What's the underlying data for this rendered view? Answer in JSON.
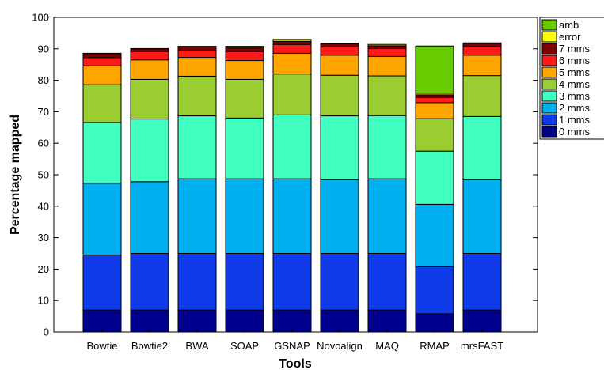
{
  "chart_data": {
    "type": "bar",
    "stacked": true,
    "title": "",
    "xlabel": "Tools",
    "ylabel": "Percentage mapped",
    "ylim": [
      0,
      100
    ],
    "yticks": [
      0,
      10,
      20,
      30,
      40,
      50,
      60,
      70,
      80,
      90,
      100
    ],
    "grid": false,
    "legend_position": "top-right",
    "categories": [
      "Bowtie",
      "Bowtie2",
      "BWA",
      "SOAP",
      "GSNAP",
      "Novoalign",
      "MAQ",
      "RMAP",
      "mrsFAST"
    ],
    "legend_order": [
      "amb",
      "error",
      "7 mms",
      "6 mms",
      "5 mms",
      "4 mms",
      "3 mms",
      "2 mms",
      "1 mms",
      "0 mms"
    ],
    "series": [
      {
        "name": "0 mms",
        "color": "#00008F",
        "values": [
          7.0,
          7.0,
          7.0,
          7.0,
          7.0,
          7.0,
          7.0,
          5.8,
          7.0
        ]
      },
      {
        "name": "1 mms",
        "color": "#0F3BE8",
        "values": [
          17.5,
          18.0,
          18.0,
          18.0,
          18.0,
          18.0,
          18.0,
          15.0,
          18.0
        ]
      },
      {
        "name": "2 mms",
        "color": "#00B0F0",
        "values": [
          22.8,
          22.8,
          23.7,
          23.7,
          23.7,
          23.4,
          23.7,
          19.8,
          23.4
        ]
      },
      {
        "name": "3 mms",
        "color": "#40FFC0",
        "values": [
          19.3,
          19.9,
          20.0,
          19.3,
          20.3,
          20.3,
          20.1,
          16.9,
          20.1
        ]
      },
      {
        "name": "4 mms",
        "color": "#9ACD32",
        "values": [
          12.0,
          12.6,
          12.6,
          12.3,
          13.0,
          12.9,
          12.6,
          10.3,
          13.0
        ]
      },
      {
        "name": "5 mms",
        "color": "#FFA500",
        "values": [
          6.0,
          6.2,
          6.0,
          6.0,
          6.6,
          6.4,
          6.2,
          5.1,
          6.5
        ]
      },
      {
        "name": "6 mms",
        "color": "#FF1A1A",
        "values": [
          2.6,
          2.6,
          2.3,
          2.8,
          2.8,
          2.6,
          2.5,
          1.7,
          2.7
        ]
      },
      {
        "name": "7 mms",
        "color": "#800000",
        "values": [
          1.3,
          0.9,
          1.1,
          1.2,
          1.0,
          1.0,
          0.9,
          0.8,
          1.0
        ]
      },
      {
        "name": "error",
        "color": "#FFFF00",
        "values": [
          0.1,
          0.1,
          0.1,
          0.5,
          0.6,
          0.2,
          0.4,
          0.5,
          0.2
        ]
      },
      {
        "name": "amb",
        "color": "#66CC00",
        "values": [
          0,
          0,
          0,
          0,
          0,
          0,
          0,
          15.0,
          0
        ]
      }
    ]
  }
}
